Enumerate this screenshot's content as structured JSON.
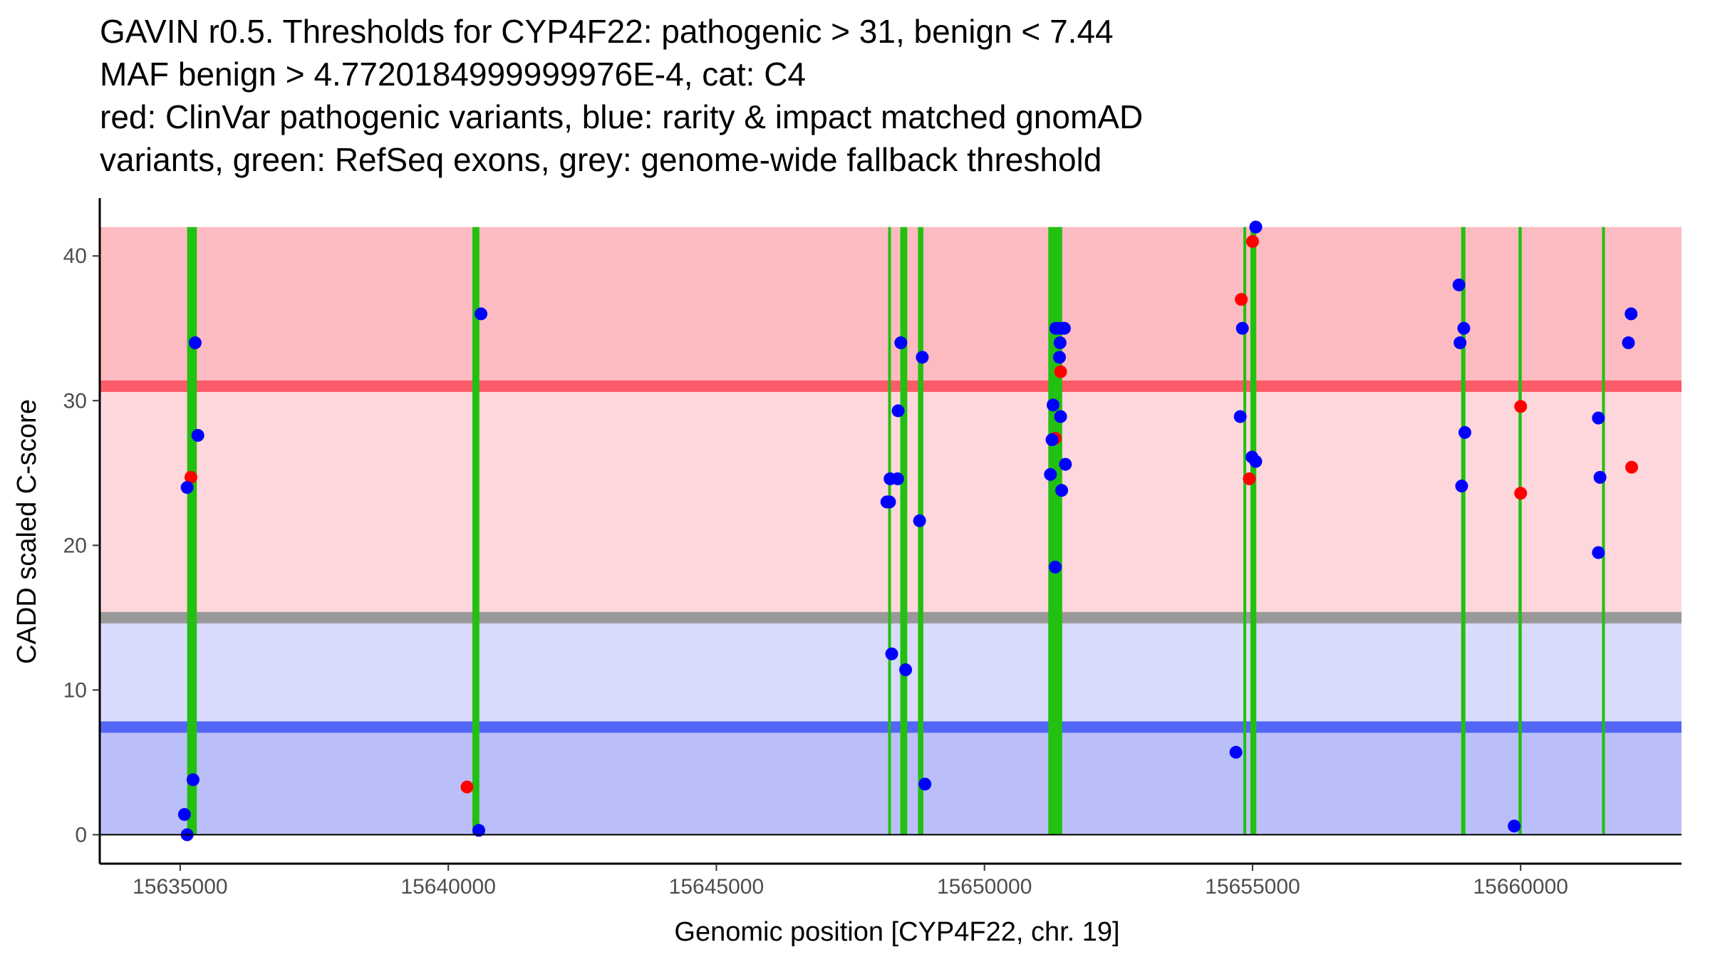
{
  "chart_data": {
    "type": "scatter",
    "title_lines": [
      "GAVIN r0.5. Thresholds for CYP4F22: pathogenic > 31, benign < 7.44",
      "MAF benign > 4.7720184999999976E-4, cat: C4",
      "red: ClinVar pathogenic variants, blue: rarity & impact matched gnomAD",
      "variants, green: RefSeq exons, grey: genome-wide fallback threshold"
    ],
    "xlabel": "Genomic position [CYP4F22, chr. 19]",
    "ylabel": "CADD scaled C-score",
    "xlim": [
      15633500,
      15663000
    ],
    "ylim": [
      -2,
      44
    ],
    "x_ticks": [
      15635000,
      15640000,
      15645000,
      15650000,
      15655000,
      15660000
    ],
    "y_ticks": [
      0,
      10,
      20,
      30,
      40
    ],
    "thresholds": {
      "pathogenic": 31,
      "benign": 7.44,
      "genome_wide_fallback": 15,
      "max_score": 42
    },
    "colors": {
      "pathogenic_zone_upper": "#fcbbc0",
      "pathogenic_zone_lower": "#fdd7dc",
      "benign_zone_upper": "#d8dbfc",
      "benign_zone_lower": "#bbbff9",
      "pathogenic_line": "#fb5b68",
      "benign_line": "#5366f6",
      "fallback_line": "#999999",
      "exon": "#22c010",
      "clinvar": "#ff0000",
      "gnomad": "#0000ff",
      "axis": "#000000"
    },
    "exons": [
      [
        15635130,
        15635310
      ],
      [
        15640450,
        15640580
      ],
      [
        15648210,
        15648250
      ],
      [
        15648430,
        15648560
      ],
      [
        15648760,
        15648860
      ],
      [
        15651190,
        15651450
      ],
      [
        15654830,
        15654880
      ],
      [
        15654960,
        15655070
      ],
      [
        15658890,
        15658970
      ],
      [
        15659960,
        15660020
      ],
      [
        15661520,
        15661570
      ]
    ],
    "series": [
      {
        "name": "ClinVar pathogenic variants",
        "color": "#ff0000",
        "points": [
          [
            15635200,
            24.7
          ],
          [
            15640350,
            3.3
          ],
          [
            15651320,
            27.4
          ],
          [
            15651420,
            32.0
          ],
          [
            15654790,
            37.0
          ],
          [
            15654940,
            24.6
          ],
          [
            15655000,
            41.0
          ],
          [
            15660000,
            29.6
          ],
          [
            15660000,
            23.6
          ],
          [
            15662070,
            25.4
          ]
        ]
      },
      {
        "name": "rarity & impact matched gnomAD variants",
        "color": "#0000ff",
        "points": [
          [
            15635130,
            24.0
          ],
          [
            15635080,
            1.4
          ],
          [
            15635130,
            0.0
          ],
          [
            15635240,
            3.8
          ],
          [
            15635280,
            34.0
          ],
          [
            15635330,
            27.6
          ],
          [
            15640610,
            36.0
          ],
          [
            15640570,
            0.3
          ],
          [
            15648180,
            23.0
          ],
          [
            15648230,
            23.0
          ],
          [
            15648240,
            24.6
          ],
          [
            15648380,
            24.6
          ],
          [
            15648390,
            29.3
          ],
          [
            15648440,
            34.0
          ],
          [
            15648270,
            12.5
          ],
          [
            15648530,
            11.4
          ],
          [
            15648790,
            21.7
          ],
          [
            15648840,
            33.0
          ],
          [
            15648890,
            3.5
          ],
          [
            15651230,
            24.9
          ],
          [
            15651260,
            27.3
          ],
          [
            15651280,
            29.7
          ],
          [
            15651320,
            18.5
          ],
          [
            15651330,
            35.0
          ],
          [
            15651380,
            35.0
          ],
          [
            15651400,
            33.0
          ],
          [
            15651410,
            34.0
          ],
          [
            15651420,
            28.9
          ],
          [
            15651440,
            23.8
          ],
          [
            15651450,
            35.0
          ],
          [
            15651490,
            35.0
          ],
          [
            15651510,
            25.6
          ],
          [
            15654690,
            5.7
          ],
          [
            15654770,
            28.9
          ],
          [
            15654810,
            35.0
          ],
          [
            15654990,
            26.1
          ],
          [
            15655060,
            25.8
          ],
          [
            15655060,
            42.0
          ],
          [
            15658850,
            38.0
          ],
          [
            15658870,
            34.0
          ],
          [
            15658900,
            24.1
          ],
          [
            15658940,
            35.0
          ],
          [
            15658960,
            27.8
          ],
          [
            15659880,
            0.6
          ],
          [
            15661450,
            28.8
          ],
          [
            15661480,
            24.7
          ],
          [
            15661450,
            19.5
          ],
          [
            15662010,
            34.0
          ],
          [
            15662060,
            36.0
          ]
        ]
      }
    ]
  }
}
